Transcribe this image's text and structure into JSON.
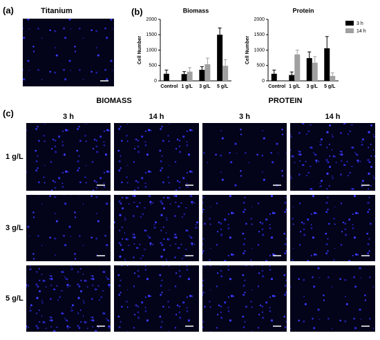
{
  "panels": {
    "a": "(a)",
    "b": "(b)",
    "c": "(c)"
  },
  "titanium": {
    "title": "Titanium"
  },
  "chart_data": [
    {
      "type": "bar",
      "title": "Biomass",
      "y_label": "Cell Number",
      "categories": [
        "Control",
        "1 g/L",
        "3 g/L",
        "5 g/L"
      ],
      "ylim": [
        0,
        2000
      ],
      "yticks": [
        0,
        500,
        1000,
        1500,
        2000
      ],
      "series": [
        {
          "color": "#000000",
          "values": [
            230,
            220,
            360,
            1500
          ],
          "errors": [
            120,
            80,
            100,
            220
          ]
        },
        {
          "color": "#a0a0a0",
          "values": [
            null,
            300,
            540,
            490
          ],
          "errors": [
            null,
            130,
            200,
            200
          ]
        }
      ]
    },
    {
      "type": "bar",
      "title": "Protein",
      "y_label": "Cell Number",
      "categories": [
        "Control",
        "1 g/L",
        "3 g/L",
        "5 g/L"
      ],
      "ylim": [
        0,
        2000
      ],
      "yticks": [
        0,
        500,
        1000,
        1500,
        2000
      ],
      "series": [
        {
          "name": "3 h",
          "color": "#000000",
          "values": [
            230,
            190,
            740,
            1060
          ],
          "errors": [
            120,
            100,
            200,
            380
          ]
        },
        {
          "name": "14 h",
          "color": "#a0a0a0",
          "values": [
            null,
            860,
            590,
            160
          ],
          "errors": [
            null,
            140,
            200,
            100
          ]
        }
      ]
    }
  ],
  "grid": {
    "groups": [
      "BIOMASS",
      "PROTEIN"
    ],
    "columns": [
      "3 h",
      "14 h",
      "3 h",
      "14 h"
    ],
    "rows": [
      "1 g/L",
      "3 g/L",
      "5 g/L"
    ]
  }
}
